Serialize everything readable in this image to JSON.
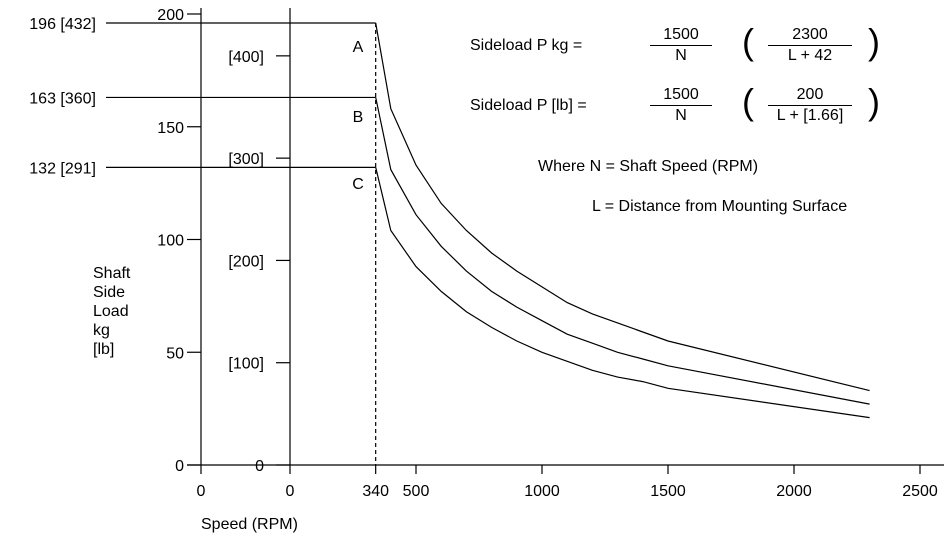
{
  "chart_data": {
    "type": "line",
    "xlabel": "Speed (RPM)",
    "ylabel_lines": [
      "Shaft",
      "Side",
      "Load",
      "kg",
      "[lb]"
    ],
    "x_ticks": [
      "0",
      "340",
      "500",
      "1000",
      "1500",
      "2000",
      "2500"
    ],
    "x_zero_left_label": "0",
    "xlim": [
      0,
      2500
    ],
    "ylim_kg": [
      0,
      200
    ],
    "y_ticks_kg": [
      "0",
      "50",
      "100",
      "150",
      "200"
    ],
    "y_ticks_lb": [
      "0",
      "[100]",
      "[200]",
      "[300]",
      "[400]"
    ],
    "y_tick_values_lb": [
      0,
      100,
      200,
      300,
      400
    ],
    "grid": false,
    "series": [
      {
        "name": "A",
        "level_label": "196 [432]",
        "level_kg": 196,
        "level_lb": 432,
        "points": [
          [
            0,
            196
          ],
          [
            340,
            196
          ],
          [
            400,
            158
          ],
          [
            500,
            133
          ],
          [
            600,
            116
          ],
          [
            700,
            104
          ],
          [
            800,
            94
          ],
          [
            900,
            86
          ],
          [
            1000,
            79
          ],
          [
            1100,
            72
          ],
          [
            1200,
            67
          ],
          [
            1300,
            63
          ],
          [
            1400,
            59
          ],
          [
            1500,
            55
          ],
          [
            2300,
            33
          ]
        ]
      },
      {
        "name": "B",
        "level_label": "163 [360]",
        "level_kg": 163,
        "level_lb": 360,
        "points": [
          [
            0,
            163
          ],
          [
            340,
            163
          ],
          [
            400,
            131
          ],
          [
            500,
            111
          ],
          [
            600,
            97
          ],
          [
            700,
            86
          ],
          [
            800,
            77
          ],
          [
            900,
            70
          ],
          [
            1000,
            64
          ],
          [
            1100,
            58
          ],
          [
            1200,
            54
          ],
          [
            1300,
            50
          ],
          [
            1400,
            47
          ],
          [
            1500,
            44
          ],
          [
            2300,
            27
          ]
        ]
      },
      {
        "name": "C",
        "level_label": "132 [291]",
        "level_kg": 132,
        "level_lb": 291,
        "points": [
          [
            0,
            132
          ],
          [
            340,
            132
          ],
          [
            400,
            104
          ],
          [
            500,
            88
          ],
          [
            600,
            77
          ],
          [
            700,
            68
          ],
          [
            800,
            61
          ],
          [
            900,
            55
          ],
          [
            1000,
            50
          ],
          [
            1100,
            46
          ],
          [
            1200,
            42
          ],
          [
            1300,
            39
          ],
          [
            1400,
            37
          ],
          [
            1500,
            34
          ],
          [
            2300,
            21
          ]
        ]
      }
    ]
  },
  "formulas": {
    "kg": {
      "label": "Sideload P  kg  =",
      "num1": "1500",
      "den1": "N",
      "num2": "2300",
      "den2": "L + 42"
    },
    "lb": {
      "label": "Sideload P  [lb]  =",
      "num1": "1500",
      "den1": "N",
      "num2": "200",
      "den2": "L + [1.66]"
    },
    "paren_open": "(",
    "paren_close": ")"
  },
  "notes": {
    "where_n": "Where N = Shaft Speed (RPM)",
    "where_l": "L = Distance from Mounting Surface"
  }
}
